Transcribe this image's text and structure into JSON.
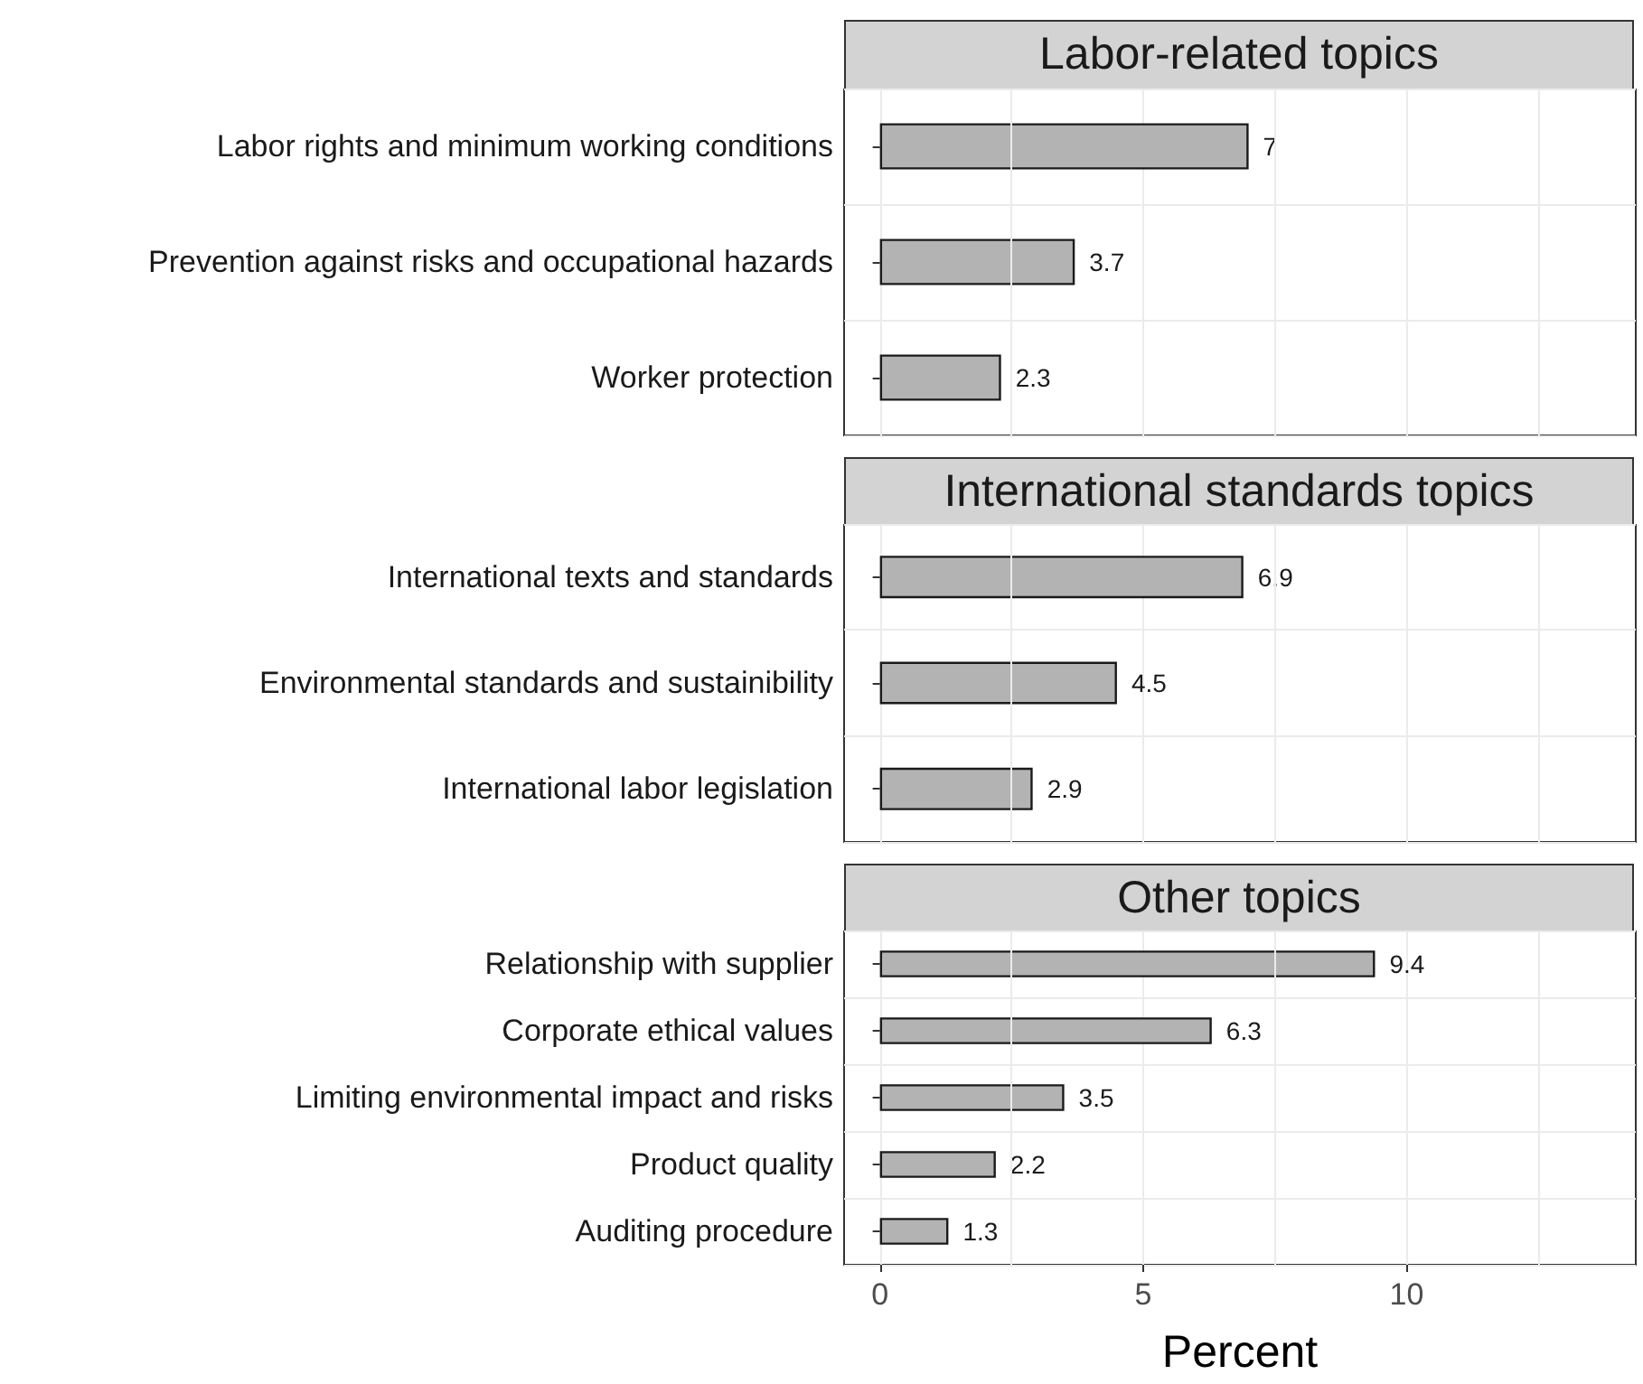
{
  "chart_data": [
    {
      "type": "bar",
      "orientation": "horizontal",
      "title": "Labor-related topics",
      "categories": [
        "Labor rights and minimum working conditions",
        "Prevention against risks and occupational hazards",
        "Worker protection"
      ],
      "values": [
        7,
        3.7,
        2.3
      ],
      "color": "#b3b3b3",
      "xlim": [
        -0.68,
        14.35
      ],
      "xticks": [
        0,
        {
          "value": 2.5,
          "label": null
        },
        5,
        {
          "value": 7.5,
          "label": null
        },
        10,
        {
          "value": 12.5,
          "label": null
        }
      ],
      "grid": true,
      "data_labels": true,
      "tick_labels": "y"
    },
    {
      "type": "bar",
      "orientation": "horizontal",
      "title": "International standards topics",
      "categories": [
        "International texts and standards",
        "Environmental standards and sustainibility",
        "International labor legislation"
      ],
      "values": [
        6.9,
        4.5,
        2.9
      ],
      "color": "#b3b3b3",
      "xlim": [
        -0.68,
        14.35
      ],
      "xticks": [
        0,
        {
          "value": 2.5,
          "label": null
        },
        5,
        {
          "value": 7.5,
          "label": null
        },
        10,
        {
          "value": 12.5,
          "label": null
        }
      ],
      "grid": true,
      "data_labels": true,
      "tick_labels": "y"
    },
    {
      "type": "bar",
      "orientation": "horizontal",
      "title": "Other topics",
      "xlabel": "Percent",
      "categories": [
        "Relationship with supplier",
        "Corporate ethical values",
        "Limiting environmental impact and risks",
        "Product quality",
        "Auditing procedure"
      ],
      "values": [
        9.4,
        6.3,
        3.5,
        2.2,
        1.3
      ],
      "color": "#b3b3b3",
      "xlim": [
        -0.68,
        14.35
      ],
      "xticks": [
        0,
        {
          "value": 2.5,
          "label": null
        },
        5,
        {
          "value": 7.5,
          "label": null
        },
        10,
        {
          "value": 12.5,
          "label": null
        }
      ],
      "grid": true,
      "data_labels": true
    }
  ]
}
